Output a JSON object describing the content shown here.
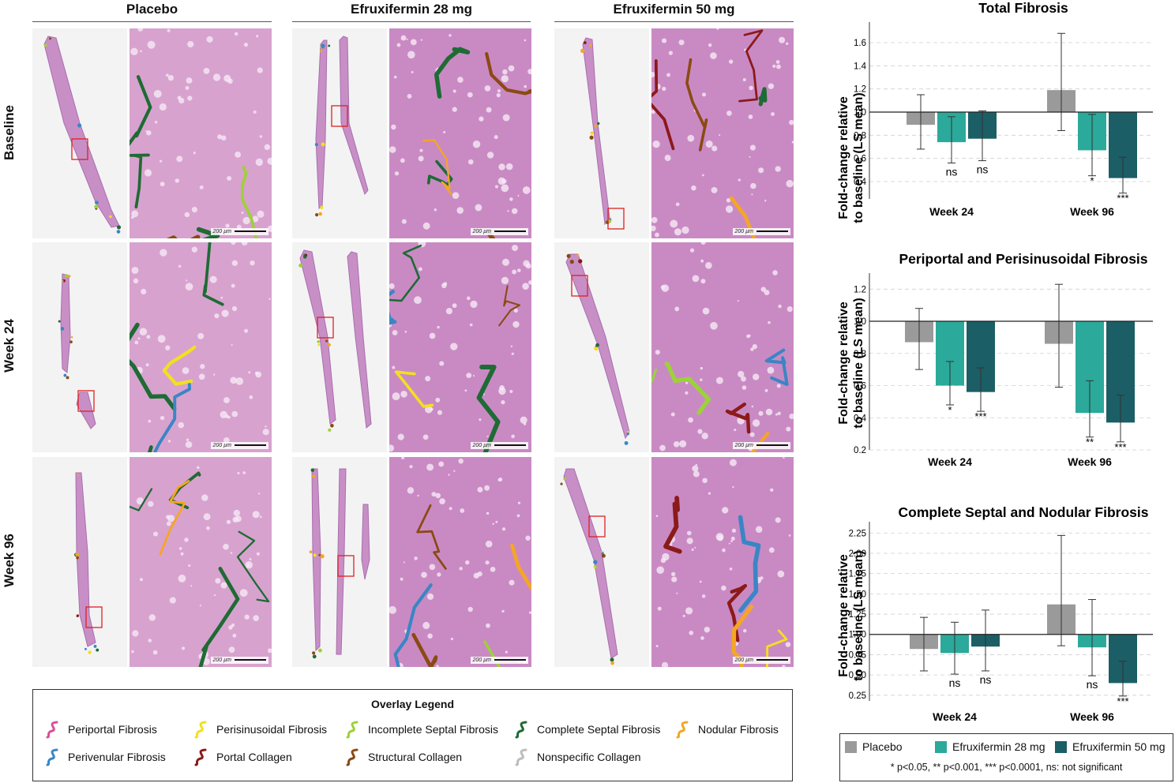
{
  "columns": [
    "Placebo",
    "Efruxifermin 28 mg",
    "Efruxifermin 50 mg"
  ],
  "rows": [
    "Baseline",
    "Week 24",
    "Week 96"
  ],
  "scale_bar_label": "200 µm",
  "overlay_legend": {
    "title": "Overlay Legend",
    "items": [
      {
        "label": "Periportal Fibrosis",
        "color": "#d9519b"
      },
      {
        "label": "Perisinusoidal Fibrosis",
        "color": "#f2e01f"
      },
      {
        "label": "Incomplete Septal Fibrosis",
        "color": "#9dd13a"
      },
      {
        "label": "Complete Septal Fibrosis",
        "color": "#1e6b34"
      },
      {
        "label": "Nodular Fibrosis",
        "color": "#f5a623"
      },
      {
        "label": "Perivenular Fibrosis",
        "color": "#3a86c4"
      },
      {
        "label": "Portal Collagen",
        "color": "#8b1a1a"
      },
      {
        "label": "Structural Collagen",
        "color": "#8b4a14"
      },
      {
        "label": "Nonspecific Collagen",
        "color": "#bdbdbd"
      }
    ]
  },
  "series_colors": {
    "Placebo": "#9a9a9a",
    "Efruxifermin 28 mg": "#2ba99a",
    "Efruxifermin 50 mg": "#1b5e66"
  },
  "chart_legend": {
    "items": [
      "Placebo",
      "Efruxifermin 28 mg",
      "Efruxifermin 50 mg"
    ],
    "note": "* p<0.05, ** p<0.001, *** p<0.0001, ns: not significant"
  },
  "chart_data": [
    {
      "type": "bar",
      "title": "Total Fibrosis",
      "ylabel": "Fold-change relative to baseline (LS mean)",
      "categories": [
        "Week 24",
        "Week 96"
      ],
      "ylim": [
        0.25,
        1.75
      ],
      "yticks": [
        "0.4",
        "0.6",
        "0.8",
        "1.0",
        "1.2",
        "1.4",
        "1.6"
      ],
      "baseline": 1.0,
      "series": [
        {
          "name": "Placebo",
          "values": [
            0.89,
            1.19
          ],
          "err_low": [
            0.68,
            0.84
          ],
          "err_high": [
            1.15,
            1.68
          ],
          "sig": [
            "",
            ""
          ]
        },
        {
          "name": "Efruxifermin 28 mg",
          "values": [
            0.74,
            0.67
          ],
          "err_low": [
            0.56,
            0.45
          ],
          "err_high": [
            0.96,
            0.98
          ],
          "sig": [
            "ns",
            "*"
          ]
        },
        {
          "name": "Efruxifermin 50 mg",
          "values": [
            0.77,
            0.43
          ],
          "err_low": [
            0.58,
            0.3
          ],
          "err_high": [
            1.01,
            0.61
          ],
          "sig": [
            "ns",
            "***"
          ]
        }
      ]
    },
    {
      "type": "bar",
      "title": "Periportal and Perisinusoidal Fibrosis",
      "ylabel": "Fold-change relative to baseline (LS mean)",
      "categories": [
        "Week 24",
        "Week 96"
      ],
      "ylim": [
        0.2,
        1.28
      ],
      "yticks": [
        "0.2",
        "0.4",
        "0.6",
        "0.8",
        "1.0",
        "1.2"
      ],
      "baseline": 1.0,
      "series": [
        {
          "name": "Placebo",
          "values": [
            0.87,
            0.86
          ],
          "err_low": [
            0.7,
            0.59
          ],
          "err_high": [
            1.08,
            1.23
          ],
          "sig": [
            "",
            ""
          ]
        },
        {
          "name": "Efruxifermin 28 mg",
          "values": [
            0.6,
            0.43
          ],
          "err_low": [
            0.48,
            0.28
          ],
          "err_high": [
            0.75,
            0.63
          ],
          "sig": [
            "*",
            "**"
          ]
        },
        {
          "name": "Efruxifermin 50 mg",
          "values": [
            0.56,
            0.37
          ],
          "err_low": [
            0.44,
            0.25
          ],
          "err_high": [
            0.71,
            0.54
          ],
          "sig": [
            "***",
            "***"
          ]
        }
      ]
    },
    {
      "type": "bar",
      "title": "Complete Septal and Nodular Fibrosis",
      "ylabel": "Fold-change relative to baseline (LS mean)",
      "categories": [
        "Week 24",
        "Week 96"
      ],
      "ylim": [
        0.18,
        2.35
      ],
      "yticks": [
        "0.25",
        "0.50",
        "0.75",
        "1.00",
        "1.25",
        "1.50",
        "1.75",
        "2.00",
        "2.25"
      ],
      "baseline": 1.0,
      "series": [
        {
          "name": "Placebo",
          "values": [
            0.82,
            1.37
          ],
          "err_low": [
            0.55,
            0.86
          ],
          "err_high": [
            1.21,
            2.22
          ],
          "sig": [
            "",
            ""
          ]
        },
        {
          "name": "Efruxifermin 28 mg",
          "values": [
            0.77,
            0.84
          ],
          "err_low": [
            0.51,
            0.49
          ],
          "err_high": [
            1.15,
            1.43
          ],
          "sig": [
            "ns",
            "ns"
          ]
        },
        {
          "name": "Efruxifermin 50 mg",
          "values": [
            0.85,
            0.4
          ],
          "err_low": [
            0.55,
            0.24
          ],
          "err_high": [
            1.3,
            0.67
          ],
          "sig": [
            "ns",
            "***"
          ]
        }
      ]
    }
  ]
}
